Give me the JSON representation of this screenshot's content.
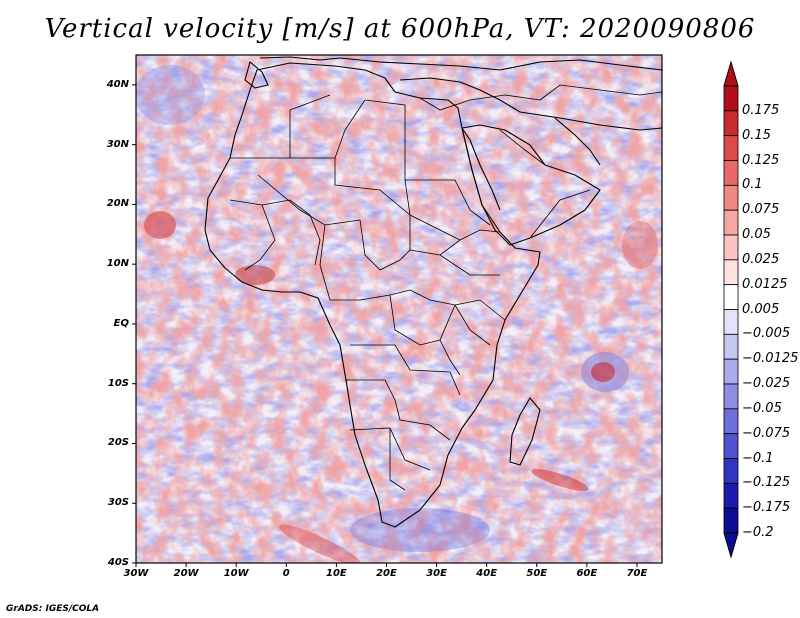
{
  "title": "Vertical velocity [m/s] at 600hPa, VT: 2020090806",
  "footer": "GrADS: IGES/COLA",
  "chart_data": {
    "type": "heatmap",
    "title": "Vertical velocity [m/s] at 600hPa, VT: 2020090806",
    "variable": "Vertical velocity",
    "units": "m/s",
    "level": "600hPa",
    "valid_time": "2020090806",
    "region": "Africa",
    "lon_range": [
      -30,
      75
    ],
    "lat_range": [
      -40,
      45
    ],
    "lon_ticks": [
      {
        "value": -30,
        "label": "30W"
      },
      {
        "value": -20,
        "label": "20W"
      },
      {
        "value": -10,
        "label": "10W"
      },
      {
        "value": 0,
        "label": "0"
      },
      {
        "value": 10,
        "label": "10E"
      },
      {
        "value": 20,
        "label": "20E"
      },
      {
        "value": 30,
        "label": "30E"
      },
      {
        "value": 40,
        "label": "40E"
      },
      {
        "value": 50,
        "label": "50E"
      },
      {
        "value": 60,
        "label": "60E"
      },
      {
        "value": 70,
        "label": "70E"
      }
    ],
    "lat_ticks": [
      {
        "value": 40,
        "label": "40N"
      },
      {
        "value": 30,
        "label": "30N"
      },
      {
        "value": 20,
        "label": "20N"
      },
      {
        "value": 10,
        "label": "10N"
      },
      {
        "value": 0,
        "label": "EQ"
      },
      {
        "value": -10,
        "label": "10S"
      },
      {
        "value": -20,
        "label": "20S"
      },
      {
        "value": -30,
        "label": "30S"
      },
      {
        "value": -40,
        "label": "40S"
      }
    ],
    "colorbar": {
      "labels": [
        "0.175",
        "0.15",
        "0.125",
        "0.1",
        "0.075",
        "0.05",
        "0.025",
        "0.0125",
        "0.005",
        "−0.005",
        "−0.0125",
        "−0.025",
        "−0.05",
        "−0.075",
        "−0.1",
        "−0.125",
        "−0.175",
        "−0.2"
      ],
      "colors": [
        "#b1101a",
        "#c92a2f",
        "#dd4a4c",
        "#e86968",
        "#f08886",
        "#f5a6a3",
        "#f9c4c1",
        "#fde2e0",
        "#ffffff",
        "#e2e2fa",
        "#c6c6f3",
        "#aaaaec",
        "#8d8de4",
        "#7070dc",
        "#5252d1",
        "#3434c2",
        "#1a1aae",
        "#0c0c96"
      ]
    }
  }
}
